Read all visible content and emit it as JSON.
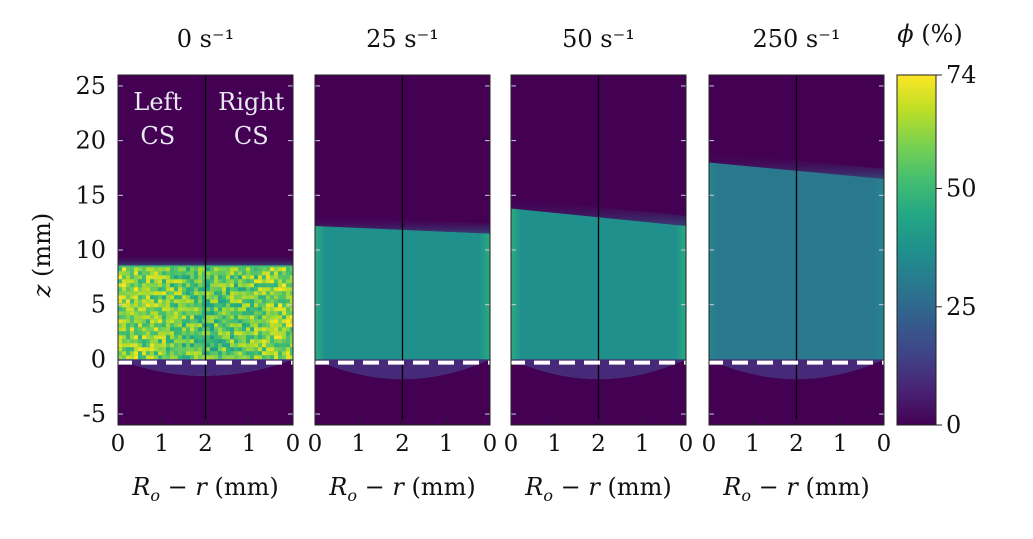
{
  "chart_data": {
    "type": "heatmap",
    "description_of_panels": null,
    "panels": [
      {
        "title": "0 s⁻¹",
        "top_of_bed_mm": [
          8.6,
          8.6
        ],
        "bottom_dip_mm": -1.5,
        "edge_high_fraction": 0.7,
        "edge_wall_fraction": 0.7,
        "texture": "noisy"
      },
      {
        "title": "25 s⁻¹",
        "top_of_bed_mm": [
          12.2,
          11.5
        ],
        "bottom_dip_mm": -1.8,
        "core_fraction": 0.5,
        "edge_wall_fraction": 0.62
      },
      {
        "title": "50 s⁻¹",
        "top_of_bed_mm": [
          13.8,
          12.2
        ],
        "bottom_dip_mm": -1.8,
        "core_fraction": 0.5,
        "edge_wall_fraction": 0.62
      },
      {
        "title": "250 s⁻¹",
        "top_of_bed_mm": [
          18.0,
          16.5
        ],
        "bottom_dip_mm": -1.8,
        "core_fraction": 0.4,
        "edge_wall_fraction": 0.46
      }
    ],
    "y_axis": {
      "label": "z (mm)",
      "ylim": [
        -6,
        26
      ],
      "ticks": [
        -5,
        0,
        5,
        10,
        15,
        20,
        25
      ]
    },
    "x_axis": {
      "label": "Rₒ − r (mm)",
      "tick_labels": [
        "0",
        "1",
        "2",
        "1",
        "0"
      ],
      "range_mm": [
        0,
        2
      ]
    },
    "panel_annotations": {
      "left": [
        "Left",
        "CS"
      ],
      "right": [
        "Right",
        "CS"
      ]
    },
    "dashed_line_z_mm": -0.3,
    "colorbar": {
      "label": "ϕ (%)",
      "min": 0,
      "max": 74,
      "ticks": [
        0,
        25,
        50,
        74
      ],
      "colormap": "viridis"
    },
    "colors": {
      "dashed_line": "#ffffff",
      "divider": "#000000",
      "background_low": "#440154"
    }
  }
}
